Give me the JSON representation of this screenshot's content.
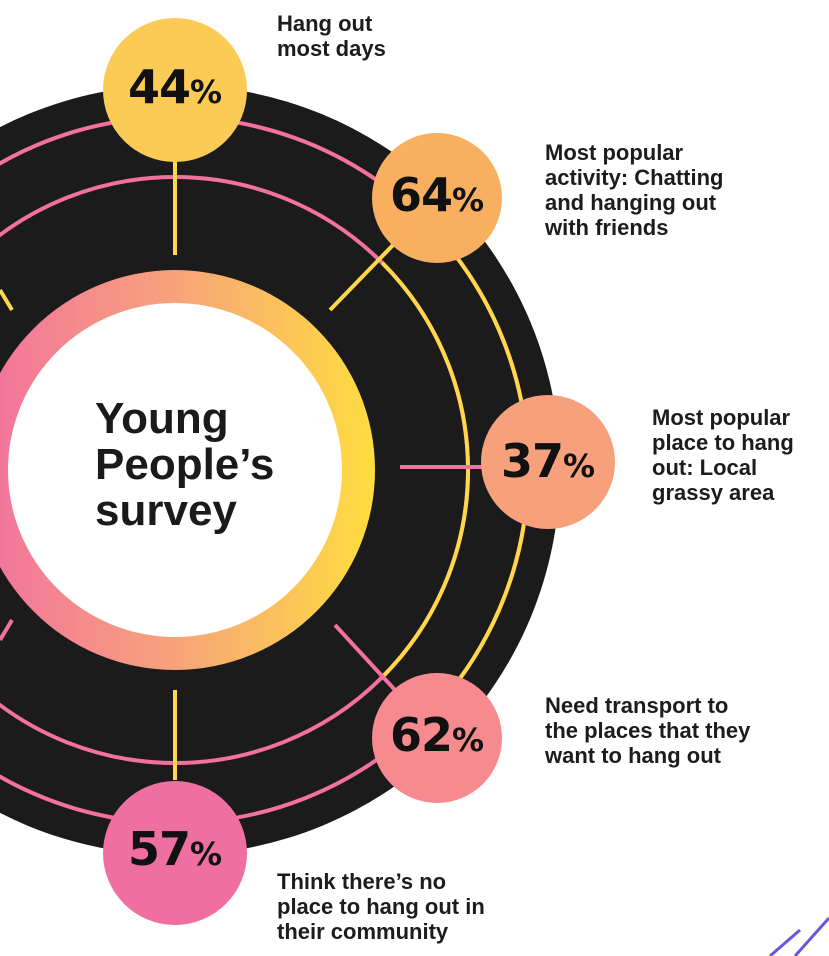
{
  "title": {
    "line1": "Young",
    "line2": "People’s",
    "line3": "survey"
  },
  "stats": [
    {
      "id": "hang-out-most-days",
      "value": "44",
      "unit": "%",
      "label": [
        "Hang out",
        "most days"
      ],
      "color": "#FBCB55"
    },
    {
      "id": "most-popular-activity",
      "value": "64",
      "unit": "%",
      "label": [
        "Most popular",
        "activity: Chatting",
        "and hanging out",
        "with friends"
      ],
      "color": "#F8B060"
    },
    {
      "id": "most-popular-place",
      "value": "37",
      "unit": "%",
      "label": [
        "Most popular",
        "place to hang",
        "out: Local",
        "grassy area"
      ],
      "color": "#F7A07C"
    },
    {
      "id": "need-transport",
      "value": "62",
      "unit": "%",
      "label": [
        "Need transport to",
        "the places that they",
        "want to hang out"
      ],
      "color": "#F78A8E"
    },
    {
      "id": "no-place-to-hang-out",
      "value": "57",
      "unit": "%",
      "label": [
        "Think there’s no",
        "place to hang out in",
        "their community"
      ],
      "color": "#F06FA1"
    }
  ],
  "colors": {
    "background": "#ffffff",
    "disc": "#1b1b1b",
    "ring_yellow": "#FFD84A",
    "ring_pink": "#F2719F",
    "accent_purple": "#6E55D6"
  }
}
